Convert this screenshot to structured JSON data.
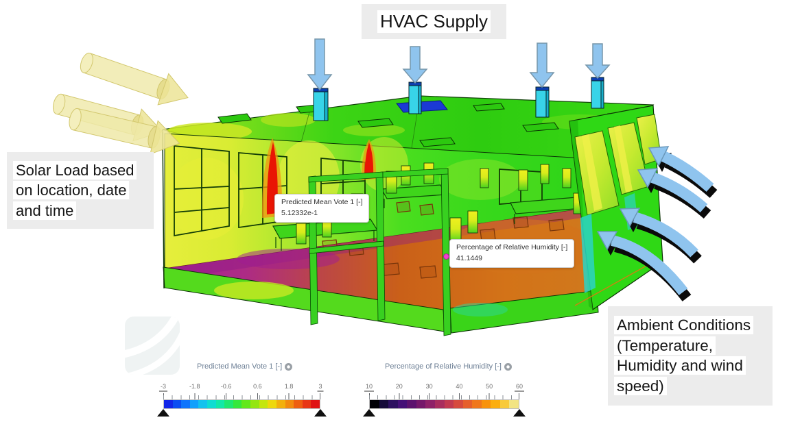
{
  "callouts": {
    "hvac": {
      "text": "HVAC Supply"
    },
    "solar": {
      "text": "Solar Load based on location, date and time"
    },
    "ambient": {
      "text": "Ambient Conditions (Temperature, Humidity and wind speed)"
    }
  },
  "probes": [
    {
      "title": "Predicted Mean Vote 1 [-]",
      "value": "5.12332e-1"
    },
    {
      "title": "Percentage of Relative Humidity [-]",
      "value": "41.1449"
    }
  ],
  "legends": [
    {
      "title": "Predicted Mean Vote 1 [-]",
      "ticks": [
        "-3",
        "-1.8",
        "-0.6",
        "0.6",
        "1.8",
        "3"
      ],
      "range": [
        -3,
        3
      ],
      "colors": [
        "#1226e8",
        "#0b4df2",
        "#0e74fc",
        "#12a0fc",
        "#14c2ee",
        "#10dcd2",
        "#12e8a8",
        "#1ee870",
        "#35e83c",
        "#62e81c",
        "#94e612",
        "#c4e60e",
        "#eed80c",
        "#f2b00c",
        "#f28a0e",
        "#ee5e10",
        "#e83614",
        "#e01212"
      ]
    },
    {
      "title": "Percentage of Relative Humidity [-]",
      "ticks": [
        "10",
        "20",
        "30",
        "40",
        "50",
        "60"
      ],
      "range": [
        10,
        60
      ],
      "colors": [
        "#000006",
        "#150b3a",
        "#2d1060",
        "#451077",
        "#5c126e",
        "#75186a",
        "#8f2268",
        "#a92e5e",
        "#c23a50",
        "#d64a3e",
        "#e65f2c",
        "#f0771c",
        "#f8920c",
        "#fcae10",
        "#f8ca3a",
        "#f2e482"
      ]
    }
  ],
  "icons": {
    "legend_settings_icon": "gray-circle-gear",
    "probe_point_marker": "magenta-dot",
    "hvac_supply_arrow": "blue-down-arrow",
    "ambient_wind_arrow": "blue-curved-arrow",
    "solar_ray_arrow": "yellow-cylinder-arrow",
    "watermark_logo": "rounded-square-curved-stripes"
  },
  "colors": {
    "arrow_blue": "#8fc4ee",
    "duct_cyan": "#38d4e8",
    "solar_yellow": "#efe9a8",
    "callout_gray": "#ececec",
    "building_green": "#3cd616",
    "floor_magenta": "#a82292",
    "floor_orange": "#cf7a1e",
    "heat_red": "#e91504"
  }
}
